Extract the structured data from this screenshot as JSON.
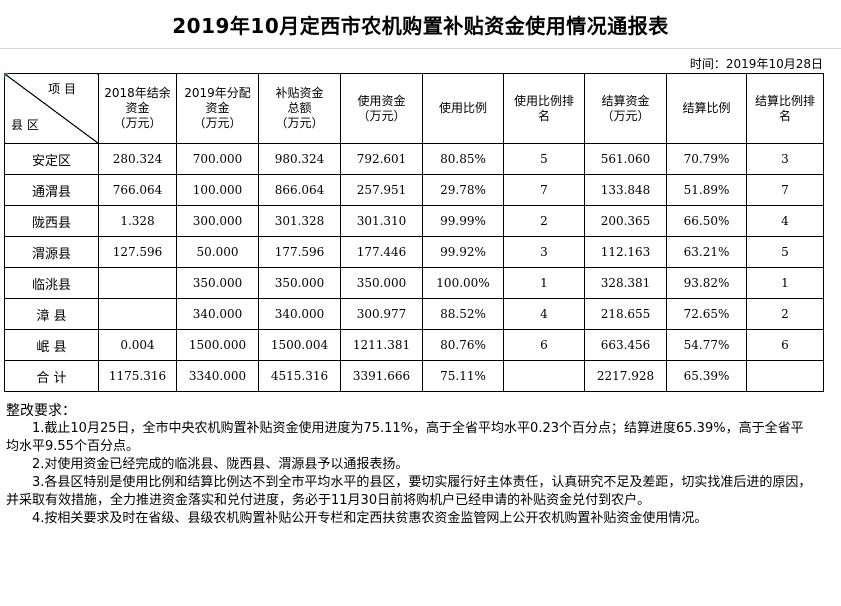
{
  "title": "2019年10月定西市农机购置补贴资金使用情况通报表",
  "date": "时间：2019年10月28日",
  "table": {
    "corner_top": "项  目",
    "corner_bottom": "县  区",
    "headers": [
      "2018年结余资金（万元）",
      "2019年分配资金（万元）",
      "补贴资金总额（万元）",
      "使用资金（万元）",
      "使用比例",
      "使用比例排名",
      "结算资金（万元）",
      "结算比例",
      "结算比例排名"
    ],
    "header_lines": [
      [
        "2018年结余",
        "资金",
        "（万元）"
      ],
      [
        "2019年分配",
        "资金",
        "（万元）"
      ],
      [
        "补贴资金",
        "总额",
        "（万元）"
      ],
      [
        "使用资金",
        "（万元）"
      ],
      [
        "使用比例"
      ],
      [
        "使用比例排",
        "名"
      ],
      [
        "结算资金",
        "（万元）"
      ],
      [
        "结算比例"
      ],
      [
        "结算比例排",
        "名"
      ]
    ],
    "rows": [
      [
        "安定区",
        "280.324",
        "700.000",
        "980.324",
        "792.601",
        "80.85%",
        "5",
        "561.060",
        "70.79%",
        "3"
      ],
      [
        "通渭县",
        "766.064",
        "100.000",
        "866.064",
        "257.951",
        "29.78%",
        "7",
        "133.848",
        "51.89%",
        "7"
      ],
      [
        "陇西县",
        "1.328",
        "300.000",
        "301.328",
        "301.310",
        "99.99%",
        "2",
        "200.365",
        "66.50%",
        "4"
      ],
      [
        "渭源县",
        "127.596",
        "50.000",
        "177.596",
        "177.446",
        "99.92%",
        "3",
        "112.163",
        "63.21%",
        "5"
      ],
      [
        "临洮县",
        "",
        "350.000",
        "350.000",
        "350.000",
        "100.00%",
        "1",
        "328.381",
        "93.82%",
        "1"
      ],
      [
        "漳  县",
        "",
        "340.000",
        "340.000",
        "300.977",
        "88.52%",
        "4",
        "218.655",
        "72.65%",
        "2"
      ],
      [
        "岷  县",
        "0.004",
        "1500.000",
        "1500.004",
        "1211.381",
        "80.76%",
        "6",
        "663.456",
        "54.77%",
        "6"
      ],
      [
        "合  计",
        "1175.316",
        "3340.000",
        "4515.316",
        "3391.666",
        "75.11%",
        "",
        "2217.928",
        "65.39%",
        ""
      ]
    ]
  },
  "notes": {
    "heading": "整改要求：",
    "items": [
      "1.截止10月25日，全市中央农机购置补贴资金使用进度为75.11%，高于全省平均水平0.23个百分点；结算进度65.39%，高于全省平均水平9.55个百分点。",
      "2.对使用资金已经完成的临洮县、陇西县、渭源县予以通报表扬。",
      "3.各县区特别是使用比例和结算比例达不到全市平均水平的县区，要切实履行好主体责任，认真研究不足及差距，切实找准后进的原因，并采取有效措施，全力推进资金落实和兑付进度，务必于11月30日前将购机户已经申请的补贴资金兑付到农户。",
      "4.按相关要求及时在省级、县级农机购置补贴公开专栏和定西扶贫惠农资金监管网上公开农机购置补贴资金使用情况。"
    ]
  }
}
